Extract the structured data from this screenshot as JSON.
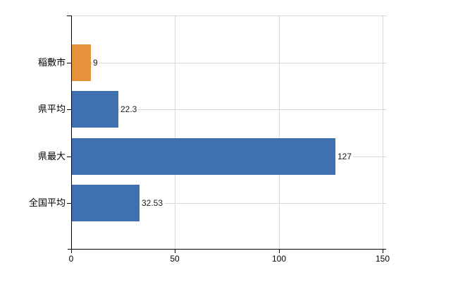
{
  "chart_data": {
    "type": "bar",
    "orientation": "horizontal",
    "title": "",
    "categories": [
      "稲敷市",
      "県平均",
      "県最大",
      "全国平均"
    ],
    "values": [
      9,
      22.3,
      127,
      32.53
    ],
    "value_labels": [
      "9",
      "22.3",
      "127",
      "32.53"
    ],
    "series": [
      {
        "name": "",
        "values": [
          9,
          22.3,
          127,
          32.53
        ]
      }
    ],
    "bar_colors": [
      "#e8913c",
      "#3f70b0",
      "#3f70b0",
      "#3f70b0"
    ],
    "xlim": [
      0,
      150
    ],
    "x_ticks": [
      0,
      50,
      100,
      150
    ],
    "x_tick_labels": [
      "0",
      "50",
      "100",
      "150"
    ],
    "grid": true,
    "legend": false,
    "colors": {
      "orange_bar": "#e8913c",
      "blue_bar": "#3f70b0",
      "gridline": "#d9d9d9",
      "axis": "#000000",
      "background": "#ffffff"
    }
  }
}
